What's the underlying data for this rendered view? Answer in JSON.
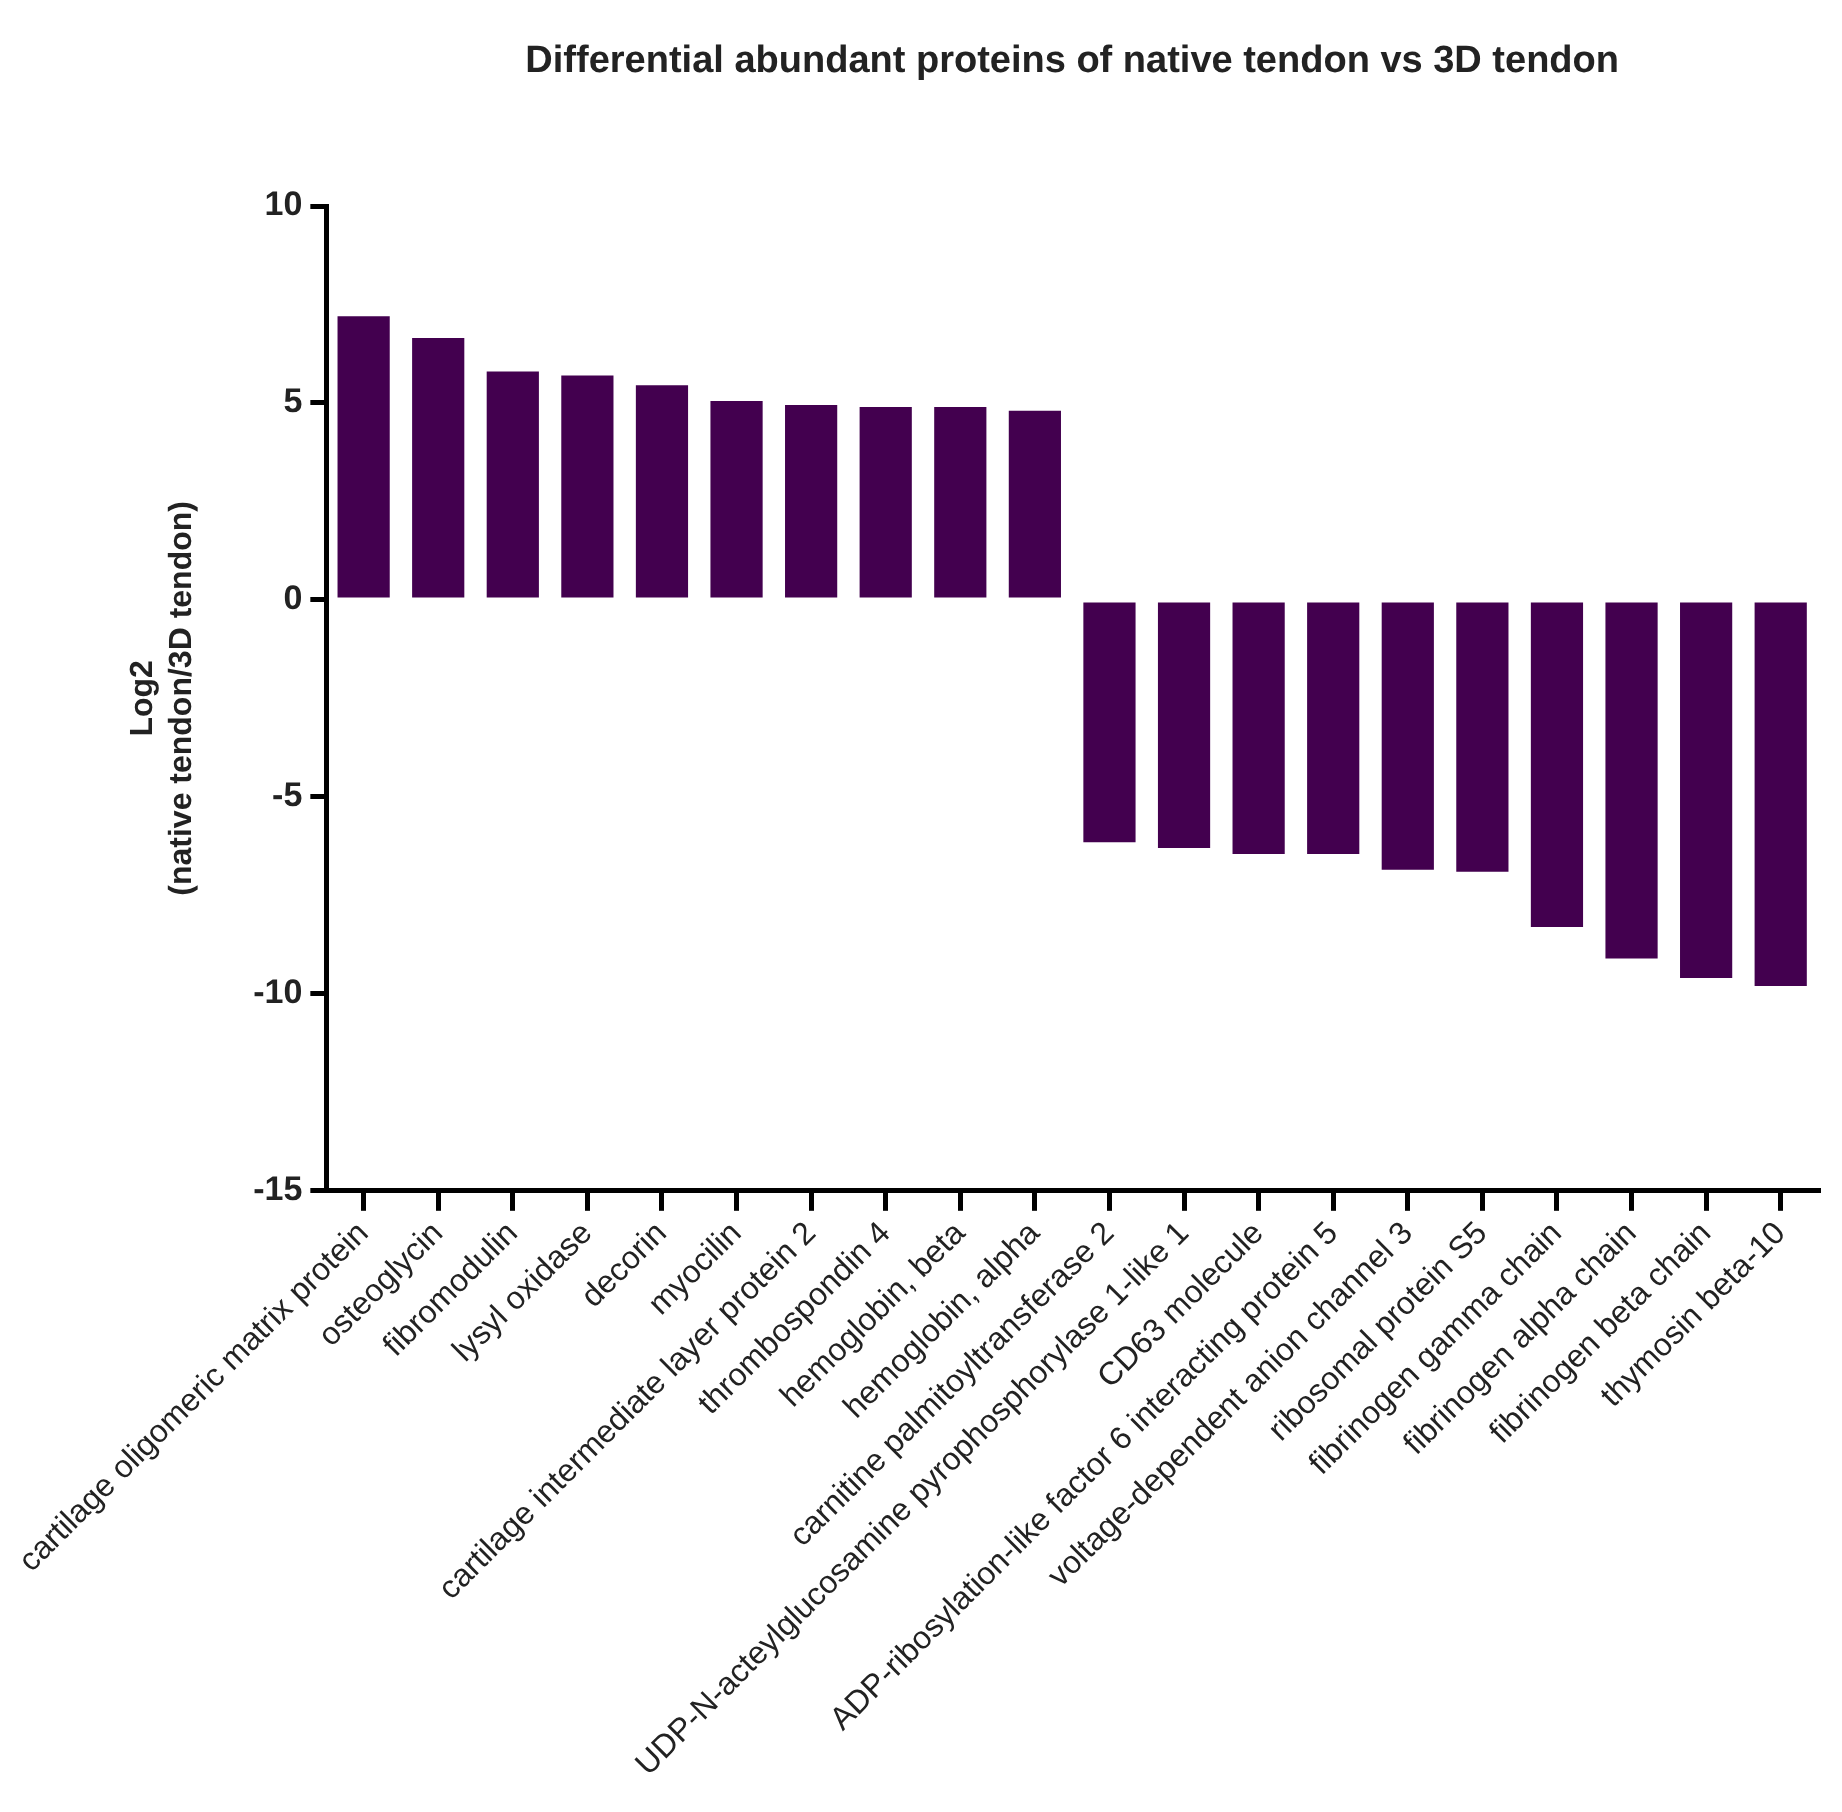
{
  "chart_data": {
    "type": "bar",
    "title": "Differential abundant proteins of native tendon vs 3D tendon",
    "ylabel": "Log2\n(native tendon/3D tendon)",
    "categories": [
      "cartilage oligomeric matrix protein",
      "osteoglycin",
      "fibromodulin",
      "lysyl oxidase",
      "decorin",
      "myocilin",
      "cartilage intermediate layer protein 2",
      "thrombospondin 4",
      "hemoglobin, beta",
      "hemoglobin, alpha",
      "carnitine palmitoyltransferase 2",
      "UDP-N-acteylglucosamine pyrophosphorylase 1-like 1",
      "CD63 molecule",
      "ADP-ribosylation-like factor 6 interacting protein 5",
      "voltage-dependent anion channel 3",
      "ribosomal protein S5",
      "fibrinogen gamma chain",
      "fibrinogen alpha chain",
      "fibrinogen beta chain",
      "thymosin beta-10"
    ],
    "values": [
      7.2,
      6.65,
      5.8,
      5.7,
      5.45,
      5.05,
      4.95,
      4.9,
      4.9,
      4.8,
      -6.15,
      -6.3,
      -6.45,
      -6.45,
      -6.85,
      -6.9,
      -8.3,
      -9.1,
      -9.6,
      -9.8
    ],
    "color": "#43004f",
    "ylim": [
      -15,
      10
    ],
    "yticks": [
      -15,
      -10,
      -5,
      0,
      5,
      10
    ],
    "grid": false,
    "legend": false
  }
}
